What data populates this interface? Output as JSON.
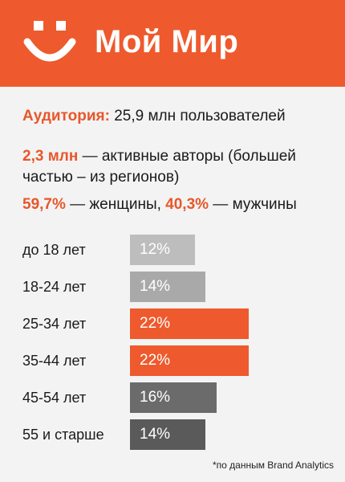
{
  "header": {
    "brand": "Мой Мир",
    "logo_icon": "smiley-icon",
    "color": "#ee5a2d"
  },
  "info": {
    "audience_label": "Аудитория:",
    "audience_value": " 25,9 млн пользователей",
    "authors_value": "2,3 млн",
    "authors_text": " — активные авторы (большей",
    "authors_text2": "частью – из регионов)",
    "women_pct": "59,7%",
    "women_text": " — женщины, ",
    "men_pct": "40,3%",
    "men_text": " — мужчины"
  },
  "chart_data": {
    "type": "bar",
    "orientation": "horizontal",
    "categories": [
      "до 18 лет",
      "18-24 лет",
      "25-34 лет",
      "35-44 лет",
      "45-54 лет",
      "55 и старше"
    ],
    "values": [
      12,
      14,
      22,
      22,
      16,
      14
    ],
    "value_labels": [
      "12%",
      "14%",
      "22%",
      "22%",
      "16%",
      "14%"
    ],
    "colors": [
      "#bdbdbd",
      "#a9a9a9",
      "#ee5a2d",
      "#ee5a2d",
      "#6b6b6b",
      "#5a5a5a"
    ],
    "xlim": [
      0,
      22
    ]
  },
  "footnote": "*по данным Brand Analytics"
}
